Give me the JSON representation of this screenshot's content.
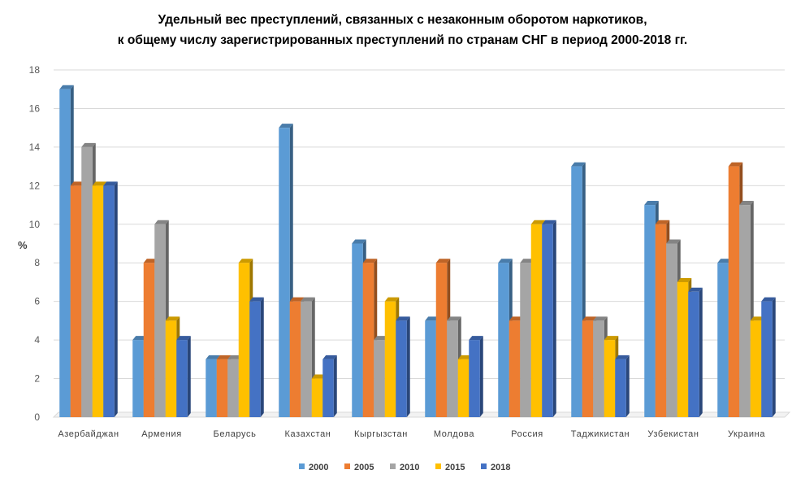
{
  "chart_data": {
    "type": "bar",
    "title_lines": [
      "Удельный вес преступлений, связанных с незаконным оборотом наркотиков,",
      "к общему числу зарегистрированных преступлений по странам СНГ в период 2000-2018 гг."
    ],
    "xlabel": "",
    "ylabel": "%",
    "ylim": [
      0,
      18
    ],
    "yticks": [
      0,
      2,
      4,
      6,
      8,
      10,
      12,
      14,
      16,
      18
    ],
    "grid": true,
    "legend_position": "bottom",
    "categories": [
      "Азербайджан",
      "Армения",
      "Беларусь",
      "Казахстан",
      "Кыргызстан",
      "Молдова",
      "Россия",
      "Таджикистан",
      "Узбекистан",
      "Украина"
    ],
    "series": [
      {
        "name": "2000",
        "color": "#5B9BD5",
        "values": [
          17,
          4,
          3,
          15,
          9,
          5,
          8,
          13,
          11,
          8
        ]
      },
      {
        "name": "2005",
        "color": "#ED7D31",
        "values": [
          12,
          8,
          3,
          6,
          8,
          8,
          5,
          5,
          10,
          13
        ]
      },
      {
        "name": "2010",
        "color": "#A5A5A5",
        "values": [
          14,
          10,
          3,
          6,
          4,
          5,
          8,
          5,
          9,
          11
        ]
      },
      {
        "name": "2015",
        "color": "#FFC000",
        "values": [
          12,
          5,
          8,
          2,
          6,
          3,
          10,
          4,
          7,
          5
        ]
      },
      {
        "name": "2018",
        "color": "#4472C4",
        "values": [
          12,
          4,
          6,
          3,
          5,
          4,
          10,
          3,
          6.5,
          6
        ]
      }
    ]
  }
}
